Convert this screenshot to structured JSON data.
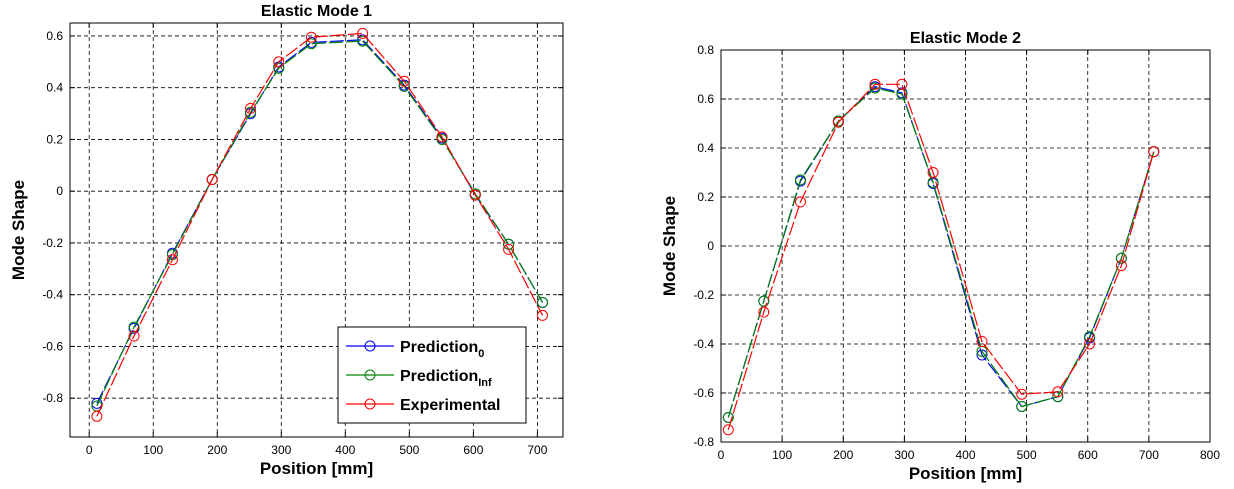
{
  "chart_data": [
    {
      "type": "line",
      "title": "Elastic Mode 1",
      "xlabel": "Position [mm]",
      "ylabel": "Mode Shape",
      "xlim": [
        -30,
        740
      ],
      "ylim": [
        -0.95,
        0.65
      ],
      "xticks": [
        0,
        100,
        200,
        300,
        400,
        500,
        600,
        700
      ],
      "xtick_labels": [
        "0",
        "100",
        "200",
        "300",
        "400",
        "500",
        "600",
        "700"
      ],
      "yticks": [
        -0.8,
        -0.6,
        -0.4,
        -0.2,
        0,
        0.2,
        0.4,
        0.6
      ],
      "ytick_labels": [
        "-0.8",
        "-0.6",
        "-0.4",
        "-0.2",
        "0",
        "0.2",
        "0.4",
        "0.6"
      ],
      "grid": true,
      "legend_position": "bottom-right",
      "series": [
        {
          "name": "Prediction",
          "name_subscript": "0",
          "color": "#0000ff",
          "x": [
            12,
            70,
            130,
            192,
            252,
            296,
            347,
            427,
            492,
            551,
            603,
            655,
            708
          ],
          "y": [
            -0.82,
            -0.53,
            -0.24,
            0.045,
            0.3,
            0.48,
            0.575,
            0.585,
            0.41,
            0.205,
            -0.015,
            -0.205,
            -0.43
          ]
        },
        {
          "name": "Prediction",
          "name_subscript": "Inf",
          "color": "#008000",
          "x": [
            12,
            70,
            130,
            192,
            252,
            296,
            347,
            427,
            492,
            551,
            603,
            655,
            708
          ],
          "y": [
            -0.83,
            -0.525,
            -0.245,
            0.045,
            0.305,
            0.475,
            0.57,
            0.58,
            0.405,
            0.2,
            -0.01,
            -0.205,
            -0.43
          ]
        },
        {
          "name": "Experimental",
          "name_subscript": "",
          "color": "#ff0000",
          "x": [
            12,
            70,
            130,
            192,
            252,
            296,
            347,
            427,
            492,
            551,
            603,
            655,
            708
          ],
          "y": [
            -0.87,
            -0.56,
            -0.265,
            0.045,
            0.32,
            0.5,
            0.595,
            0.61,
            0.425,
            0.21,
            -0.015,
            -0.225,
            -0.48
          ]
        }
      ]
    },
    {
      "type": "line",
      "title": "Elastic Mode 2",
      "xlabel": "Position [mm]",
      "ylabel": "Mode Shape",
      "xlim": [
        0,
        800
      ],
      "ylim": [
        -0.8,
        0.8
      ],
      "xticks": [
        0,
        100,
        200,
        300,
        400,
        500,
        600,
        700,
        800
      ],
      "xtick_labels": [
        "0",
        "100",
        "200",
        "300",
        "400",
        "500",
        "600",
        "700",
        "800"
      ],
      "yticks": [
        -0.8,
        -0.6,
        -0.4,
        -0.2,
        0,
        0.2,
        0.4,
        0.6,
        0.8
      ],
      "ytick_labels": [
        "-0.8",
        "-0.6",
        "-0.4",
        "-0.2",
        "0",
        "0.2",
        "0.4",
        "0.6",
        "0.8"
      ],
      "grid": true,
      "series": [
        {
          "name": "Prediction",
          "name_subscript": "0",
          "color": "#0000ff",
          "x": [
            12,
            70,
            130,
            192,
            252,
            296,
            347,
            427,
            492,
            551,
            603,
            655,
            708
          ],
          "y": [
            -0.7,
            -0.225,
            0.265,
            0.51,
            0.65,
            0.625,
            0.255,
            -0.445,
            -0.655,
            -0.615,
            -0.375,
            -0.05,
            0.385
          ]
        },
        {
          "name": "Prediction",
          "name_subscript": "Inf",
          "color": "#008000",
          "x": [
            12,
            70,
            130,
            192,
            252,
            296,
            347,
            427,
            492,
            551,
            603,
            655,
            708
          ],
          "y": [
            -0.7,
            -0.225,
            0.27,
            0.51,
            0.645,
            0.62,
            0.26,
            -0.43,
            -0.655,
            -0.615,
            -0.37,
            -0.05,
            0.385
          ]
        },
        {
          "name": "Experimental",
          "name_subscript": "",
          "color": "#ff0000",
          "x": [
            12,
            70,
            130,
            192,
            252,
            296,
            347,
            427,
            492,
            551,
            603,
            655,
            708
          ],
          "y": [
            -0.75,
            -0.27,
            0.18,
            0.505,
            0.66,
            0.66,
            0.3,
            -0.39,
            -0.605,
            -0.595,
            -0.4,
            -0.08,
            0.385
          ]
        }
      ]
    }
  ]
}
